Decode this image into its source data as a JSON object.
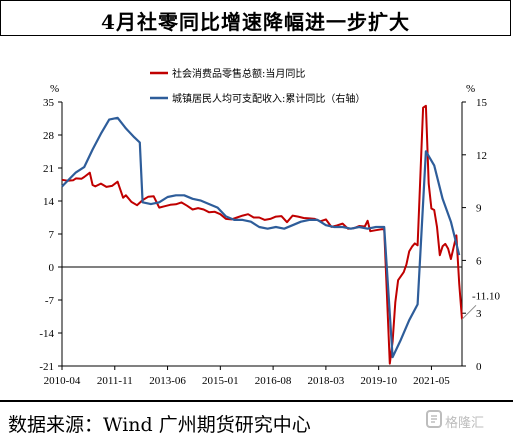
{
  "title": "4月社零同比增速降幅进一步扩大",
  "source": "数据来源：Wind 广州期货研究中心",
  "watermark": "格隆汇",
  "chart_data": {
    "type": "line",
    "title": "4月社零同比增速降幅进一步扩大",
    "left_axis": {
      "unit": "%",
      "ticks": [
        35,
        28,
        21,
        14,
        7,
        0,
        -7,
        -14,
        -21
      ],
      "ylim": [
        -21,
        35
      ]
    },
    "right_axis": {
      "unit": "%",
      "ticks": [
        15,
        12,
        9,
        6,
        3,
        0
      ],
      "ylim": [
        0,
        15
      ]
    },
    "x_ticks": [
      "2010-04",
      "2011-11",
      "2013-06",
      "2015-01",
      "2016-08",
      "2018-03",
      "2019-10",
      "2021-05"
    ],
    "x_range": [
      "2010-04",
      "2022-04"
    ],
    "annotation": "-11.10",
    "series": [
      {
        "name": "社会消费品零售总额:当月同比",
        "axis": "left",
        "color": "#c00000",
        "points": [
          [
            "2010-04",
            18.5
          ],
          [
            "2010-06",
            18.3
          ],
          [
            "2010-08",
            18.4
          ],
          [
            "2010-09",
            18.8
          ],
          [
            "2010-11",
            18.7
          ],
          [
            "2010-12",
            19.1
          ],
          [
            "2011-02",
            20.0
          ],
          [
            "2011-03",
            17.4
          ],
          [
            "2011-04",
            17.1
          ],
          [
            "2011-06",
            17.7
          ],
          [
            "2011-08",
            17.0
          ],
          [
            "2011-10",
            17.2
          ],
          [
            "2011-12",
            18.1
          ],
          [
            "2012-02",
            14.7
          ],
          [
            "2012-03",
            15.2
          ],
          [
            "2012-05",
            13.8
          ],
          [
            "2012-07",
            13.1
          ],
          [
            "2012-09",
            14.2
          ],
          [
            "2012-11",
            14.9
          ],
          [
            "2013-01",
            15.0
          ],
          [
            "2013-03",
            12.6
          ],
          [
            "2013-05",
            12.9
          ],
          [
            "2013-07",
            13.2
          ],
          [
            "2013-09",
            13.3
          ],
          [
            "2013-11",
            13.7
          ],
          [
            "2014-01",
            13.0
          ],
          [
            "2014-03",
            12.2
          ],
          [
            "2014-05",
            12.5
          ],
          [
            "2014-07",
            12.2
          ],
          [
            "2014-09",
            11.6
          ],
          [
            "2014-11",
            11.7
          ],
          [
            "2015-01",
            11.2
          ],
          [
            "2015-03",
            10.2
          ],
          [
            "2015-05",
            10.1
          ],
          [
            "2015-07",
            10.5
          ],
          [
            "2015-09",
            10.9
          ],
          [
            "2015-11",
            11.2
          ],
          [
            "2016-01",
            10.5
          ],
          [
            "2016-03",
            10.5
          ],
          [
            "2016-05",
            10.0
          ],
          [
            "2016-07",
            10.2
          ],
          [
            "2016-09",
            10.7
          ],
          [
            "2016-11",
            10.8
          ],
          [
            "2017-01",
            9.5
          ],
          [
            "2017-03",
            10.9
          ],
          [
            "2017-05",
            10.7
          ],
          [
            "2017-07",
            10.4
          ],
          [
            "2017-09",
            10.3
          ],
          [
            "2017-11",
            10.2
          ],
          [
            "2018-01",
            9.7
          ],
          [
            "2018-03",
            10.1
          ],
          [
            "2018-05",
            8.5
          ],
          [
            "2018-07",
            8.8
          ],
          [
            "2018-09",
            9.2
          ],
          [
            "2018-11",
            8.1
          ],
          [
            "2019-01",
            8.2
          ],
          [
            "2019-03",
            8.7
          ],
          [
            "2019-05",
            8.6
          ],
          [
            "2019-06",
            9.8
          ],
          [
            "2019-07",
            7.6
          ],
          [
            "2019-09",
            7.8
          ],
          [
            "2019-11",
            8.0
          ],
          [
            "2019-12",
            8.0
          ],
          [
            "2020-02",
            -20.5
          ],
          [
            "2020-03",
            -15.8
          ],
          [
            "2020-04",
            -7.5
          ],
          [
            "2020-05",
            -2.8
          ],
          [
            "2020-07",
            -1.1
          ],
          [
            "2020-08",
            0.5
          ],
          [
            "2020-09",
            3.3
          ],
          [
            "2020-10",
            4.3
          ],
          [
            "2020-11",
            5.0
          ],
          [
            "2020-12",
            4.6
          ],
          [
            "2021-02",
            33.8
          ],
          [
            "2021-03",
            34.2
          ],
          [
            "2021-04",
            17.7
          ],
          [
            "2021-05",
            12.4
          ],
          [
            "2021-06",
            12.1
          ],
          [
            "2021-07",
            8.5
          ],
          [
            "2021-08",
            2.5
          ],
          [
            "2021-09",
            4.4
          ],
          [
            "2021-10",
            4.9
          ],
          [
            "2021-11",
            3.9
          ],
          [
            "2021-12",
            1.7
          ],
          [
            "2022-02",
            6.7
          ],
          [
            "2022-03",
            -3.5
          ],
          [
            "2022-04",
            -11.1
          ]
        ]
      },
      {
        "name": "城镇居民人均可支配收入:累计同比（右轴）",
        "axis": "right",
        "color": "#2e5d9a",
        "points": [
          [
            "2010-04",
            10.2
          ],
          [
            "2010-09",
            11.0
          ],
          [
            "2010-12",
            11.3
          ],
          [
            "2011-03",
            12.3
          ],
          [
            "2011-06",
            13.2
          ],
          [
            "2011-09",
            14.0
          ],
          [
            "2011-12",
            14.1
          ],
          [
            "2012-03",
            13.5
          ],
          [
            "2012-06",
            13.0
          ],
          [
            "2012-08",
            12.7
          ],
          [
            "2012-09",
            9.3
          ],
          [
            "2012-12",
            9.2
          ],
          [
            "2013-03",
            9.3
          ],
          [
            "2013-06",
            9.6
          ],
          [
            "2013-09",
            9.7
          ],
          [
            "2013-12",
            9.7
          ],
          [
            "2014-03",
            9.5
          ],
          [
            "2014-06",
            9.4
          ],
          [
            "2014-09",
            9.2
          ],
          [
            "2014-12",
            9.0
          ],
          [
            "2015-03",
            8.5
          ],
          [
            "2015-06",
            8.3
          ],
          [
            "2015-09",
            8.3
          ],
          [
            "2015-12",
            8.2
          ],
          [
            "2016-03",
            7.9
          ],
          [
            "2016-06",
            7.8
          ],
          [
            "2016-09",
            7.9
          ],
          [
            "2016-12",
            7.8
          ],
          [
            "2017-03",
            8.0
          ],
          [
            "2017-06",
            8.2
          ],
          [
            "2017-09",
            8.3
          ],
          [
            "2017-12",
            8.3
          ],
          [
            "2018-03",
            8.0
          ],
          [
            "2018-06",
            7.9
          ],
          [
            "2018-09",
            7.9
          ],
          [
            "2018-12",
            7.8
          ],
          [
            "2019-03",
            7.9
          ],
          [
            "2019-06",
            7.8
          ],
          [
            "2019-09",
            7.9
          ],
          [
            "2019-12",
            7.9
          ],
          [
            "2020-03",
            0.5
          ],
          [
            "2020-06",
            1.5
          ],
          [
            "2020-09",
            2.6
          ],
          [
            "2020-12",
            3.5
          ],
          [
            "2021-03",
            12.2
          ],
          [
            "2021-06",
            11.4
          ],
          [
            "2021-09",
            9.5
          ],
          [
            "2021-12",
            8.2
          ],
          [
            "2022-03",
            6.3
          ]
        ]
      }
    ]
  }
}
